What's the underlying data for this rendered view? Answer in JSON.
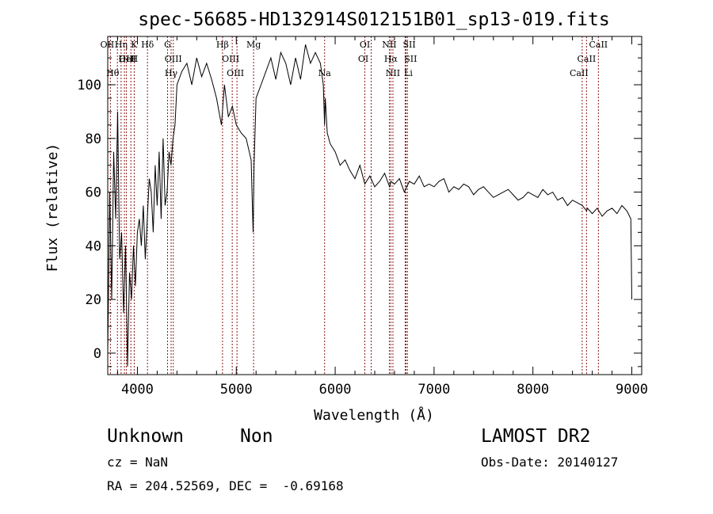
{
  "chart_data": {
    "type": "line",
    "title": "spec-56685-HD132914S012151B01_sp13-019.fits",
    "xlabel": "Wavelength (Å)",
    "ylabel": "Flux (relative)",
    "xlim": [
      3700,
      9100
    ],
    "ylim": [
      -8,
      118
    ],
    "xticks": [
      4000,
      5000,
      6000,
      7000,
      8000,
      9000
    ],
    "yticks": [
      0,
      20,
      40,
      60,
      80,
      100
    ],
    "grid": false,
    "line_color": "#000000",
    "marker_color": "#8b1a1a",
    "series": [
      {
        "x": [
          3700,
          3720,
          3740,
          3760,
          3780,
          3800,
          3820,
          3840,
          3860,
          3880,
          3900,
          3920,
          3940,
          3960,
          3980,
          4000,
          4020,
          4040,
          4060,
          4080,
          4100,
          4120,
          4140,
          4160,
          4180,
          4200,
          4220,
          4240,
          4260,
          4280,
          4300,
          4320,
          4340,
          4360,
          4380,
          4400,
          4450,
          4500,
          4550,
          4600,
          4650,
          4700,
          4750,
          4800,
          4850,
          4880,
          4920,
          4960,
          5000,
          5050,
          5100,
          5150,
          5170,
          5180,
          5200,
          5250,
          5300,
          5350,
          5400,
          5450,
          5500,
          5550,
          5600,
          5650,
          5700,
          5750,
          5800,
          5850,
          5880,
          5893,
          5900,
          5920,
          5950,
          6000,
          6050,
          6100,
          6150,
          6200,
          6250,
          6300,
          6350,
          6400,
          6450,
          6500,
          6550,
          6563,
          6600,
          6650,
          6700,
          6750,
          6800,
          6850,
          6900,
          6950,
          7000,
          7050,
          7100,
          7150,
          7200,
          7250,
          7300,
          7350,
          7400,
          7450,
          7500,
          7550,
          7600,
          7650,
          7700,
          7750,
          7800,
          7850,
          7900,
          7950,
          8000,
          8050,
          8100,
          8150,
          8200,
          8250,
          8300,
          8350,
          8400,
          8450,
          8500,
          8542,
          8550,
          8600,
          8650,
          8700,
          8750,
          8800,
          8850,
          8900,
          8950,
          8990,
          9000
        ],
        "y": [
          0,
          60,
          20,
          75,
          50,
          90,
          35,
          45,
          15,
          40,
          -5,
          30,
          20,
          40,
          25,
          45,
          50,
          40,
          55,
          35,
          50,
          65,
          60,
          45,
          70,
          55,
          75,
          50,
          80,
          55,
          60,
          75,
          70,
          80,
          85,
          100,
          105,
          108,
          100,
          110,
          103,
          108,
          102,
          95,
          85,
          100,
          88,
          92,
          85,
          82,
          80,
          72,
          45,
          70,
          95,
          100,
          105,
          110,
          102,
          112,
          108,
          100,
          110,
          102,
          115,
          108,
          112,
          108,
          100,
          85,
          95,
          82,
          78,
          75,
          70,
          72,
          68,
          65,
          70,
          63,
          66,
          62,
          64,
          67,
          62,
          64,
          63,
          65,
          60,
          64,
          63,
          66,
          62,
          63,
          62,
          64,
          65,
          60,
          62,
          61,
          63,
          62,
          59,
          61,
          62,
          60,
          58,
          59,
          60,
          61,
          59,
          57,
          58,
          60,
          59,
          58,
          61,
          59,
          60,
          57,
          58,
          55,
          57,
          56,
          55,
          53,
          54,
          52,
          54,
          51,
          53,
          54,
          52,
          55,
          53,
          50,
          20
        ]
      }
    ],
    "lines": [
      {
        "label": "Hθ",
        "x": 3798
      },
      {
        "label": "Hη",
        "x": 3835
      },
      {
        "label": "K",
        "x": 3934
      },
      {
        "label": "H",
        "x": 3968
      },
      {
        "label": "HeI",
        "x": 3889
      },
      {
        "label": "OII",
        "x": 3727
      },
      {
        "label": "OIII",
        "x": 3869
      },
      {
        "label": "Hδ",
        "x": 4102
      },
      {
        "label": "G",
        "x": 4305
      },
      {
        "label": "OIII",
        "x": 4363
      },
      {
        "label": "Hγ",
        "x": 4341
      },
      {
        "label": "Hβ",
        "x": 4861
      },
      {
        "label": "OIII",
        "x": 4959
      },
      {
        "label": "OIII",
        "x": 5007
      },
      {
        "label": "Mg",
        "x": 5175
      },
      {
        "label": "Na",
        "x": 5893
      },
      {
        "label": "OI",
        "x": 6300
      },
      {
        "label": "OI",
        "x": 6364
      },
      {
        "label": "NII",
        "x": 6548
      },
      {
        "label": "Hα",
        "x": 6563
      },
      {
        "label": "NII",
        "x": 6584
      },
      {
        "label": "SII",
        "x": 6717
      },
      {
        "label": "SII",
        "x": 6731
      },
      {
        "label": "Li",
        "x": 6708
      },
      {
        "label": "CaII",
        "x": 8498
      },
      {
        "label": "CaII",
        "x": 8542
      },
      {
        "label": "CaII",
        "x": 8662
      }
    ]
  },
  "info": {
    "object_class": "Unknown",
    "subclass": "Non",
    "survey": "LAMOST DR2",
    "cz": "cz = NaN",
    "obs_date": "Obs-Date: 20140127",
    "coords": "RA = 204.52569, DEC =  -0.69168"
  }
}
